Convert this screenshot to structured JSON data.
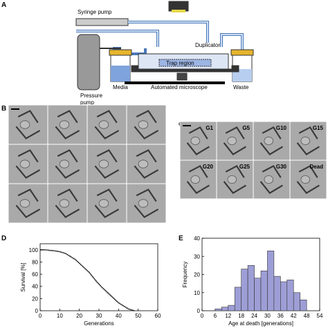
{
  "panel_labels": [
    "A",
    "B",
    "C",
    "D",
    "E"
  ],
  "diagram": {
    "syringe_pump": "Syringe pump",
    "duplicator": "Duplicator",
    "trap_region": "Trap region",
    "pressure_pump": [
      "Pressure",
      "pump"
    ],
    "media": "Media",
    "microscope": "Automated microscope",
    "waste": "Waste"
  },
  "micrograph_labels": [
    "G1",
    "G5",
    "G10",
    "G15",
    "G20",
    "G25",
    "G30",
    "Dead"
  ],
  "chart_data": [
    {
      "type": "line",
      "xlabel": "Generations",
      "ylabel": "Survival [%]",
      "color": "#000000",
      "x": [
        0,
        1,
        2,
        3,
        4,
        5,
        6,
        7,
        8,
        9,
        10,
        11,
        12,
        13,
        14,
        15,
        16,
        17,
        18,
        19,
        20,
        21,
        22,
        23,
        24,
        25,
        26,
        27,
        28,
        29,
        30,
        31,
        32,
        33,
        34,
        35,
        36,
        37,
        38,
        39,
        40,
        41,
        42,
        43,
        44,
        45,
        46,
        47,
        48
      ],
      "values": [
        100,
        100,
        100,
        100,
        99.5,
        99,
        99,
        98.5,
        98,
        97.5,
        97,
        96,
        95,
        94,
        92,
        90,
        88,
        86,
        84,
        81,
        78,
        75,
        72,
        69,
        66,
        63,
        59,
        55,
        51,
        47,
        44,
        40,
        37,
        34,
        31,
        28,
        25,
        22,
        19,
        16,
        13,
        11,
        9,
        7,
        5,
        3,
        2,
        1,
        0
      ],
      "xlim": [
        0,
        60
      ],
      "xticks": [
        0,
        10,
        20,
        30,
        40,
        50,
        60
      ],
      "ylim": [
        0,
        110
      ],
      "yticks": [
        0,
        20,
        40,
        60,
        80,
        100
      ]
    },
    {
      "type": "histogram",
      "xlabel": "Age at death [generations]",
      "ylabel": "Frequency",
      "color": "#9e9ed6",
      "bins": [
        6,
        9,
        12,
        15,
        18,
        21,
        24,
        27,
        30,
        33,
        36,
        39,
        42,
        45,
        48
      ],
      "values": [
        1,
        2,
        3,
        13,
        23,
        25,
        18,
        22,
        33,
        19,
        16,
        17,
        10,
        6
      ],
      "xlim": [
        0,
        54
      ],
      "xticks": [
        0,
        6,
        12,
        18,
        24,
        30,
        36,
        42,
        48,
        54
      ],
      "ylim": [
        0,
        40
      ],
      "yticks": [
        0,
        10,
        20,
        30,
        40
      ]
    }
  ]
}
